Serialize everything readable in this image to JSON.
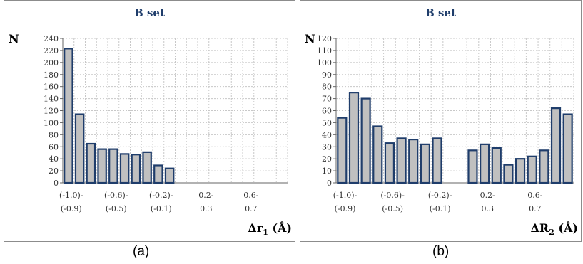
{
  "chart_data": [
    {
      "type": "bar",
      "title": "B set",
      "ylabel": "N",
      "xlabel_main": "Δr",
      "xlabel_sub": "1",
      "xlabel_unit": " (Å)",
      "ylim": [
        0,
        240
      ],
      "yticks": [
        0,
        20,
        40,
        60,
        80,
        100,
        120,
        140,
        160,
        180,
        200,
        220,
        240
      ],
      "grid": true,
      "bar_color": "#c0c0c0",
      "bar_edge": "#1f3d6b",
      "values": [
        223,
        114,
        65,
        56,
        56,
        48,
        47,
        51,
        29,
        24,
        0,
        0,
        0,
        0,
        0,
        0,
        0,
        0,
        0,
        0
      ],
      "xtick_labels": [
        {
          "index": 0,
          "lines": [
            "(-1.0)-",
            "(-0.9)"
          ]
        },
        {
          "index": 4,
          "lines": [
            "(-0.6)-",
            "(-0.5)"
          ]
        },
        {
          "index": 8,
          "lines": [
            "(-0.2)-",
            "(-0.1)"
          ]
        },
        {
          "index": 12,
          "lines": [
            "0.2-",
            "0.3"
          ]
        },
        {
          "index": 16,
          "lines": [
            "0.6-",
            "0.7"
          ]
        }
      ],
      "caption": "(a)"
    },
    {
      "type": "bar",
      "title": "B set",
      "ylabel": "N",
      "xlabel_main": "ΔR",
      "xlabel_sub": "2",
      "xlabel_unit": " (Å)",
      "ylim": [
        0,
        120
      ],
      "yticks": [
        0,
        10,
        20,
        30,
        40,
        50,
        60,
        70,
        80,
        90,
        100,
        110,
        120
      ],
      "grid": true,
      "bar_color": "#c0c0c0",
      "bar_edge": "#1f3d6b",
      "values": [
        54,
        75,
        70,
        47,
        33,
        37,
        36,
        32,
        37,
        0,
        0,
        27,
        32,
        29,
        15,
        20,
        22,
        27,
        62,
        57
      ],
      "xtick_labels": [
        {
          "index": 0,
          "lines": [
            "(-1.0)-",
            "(-0.9)"
          ]
        },
        {
          "index": 4,
          "lines": [
            "(-0.6)-",
            "(-0.5)"
          ]
        },
        {
          "index": 8,
          "lines": [
            "(-0.2)-",
            "(-0.1)"
          ]
        },
        {
          "index": 12,
          "lines": [
            "0.2-",
            "0.3"
          ]
        },
        {
          "index": 16,
          "lines": [
            "0.6-",
            "0.7"
          ]
        }
      ],
      "caption": "(b)"
    }
  ]
}
